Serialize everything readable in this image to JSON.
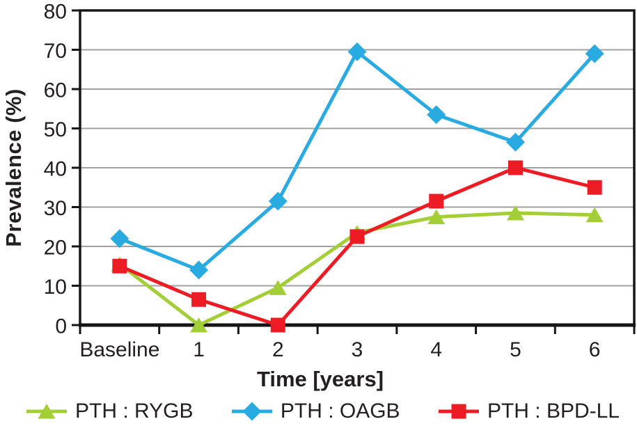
{
  "figure": {
    "background": "#ffffff",
    "text_color": "#231f20",
    "axis_color": "#161616",
    "gridline_color": "#a0a0a0"
  },
  "chart_data": {
    "type": "line",
    "title": "",
    "xlabel": "Time [years]",
    "ylabel": "Prevalence (%)",
    "categories": [
      "Baseline",
      "1",
      "2",
      "3",
      "4",
      "5",
      "6"
    ],
    "y_ticks": [
      0,
      10,
      20,
      30,
      40,
      50,
      60,
      70,
      80
    ],
    "ylim": [
      0,
      80
    ],
    "grid": "horizontal",
    "legend_position": "bottom",
    "series": [
      {
        "name": "PTH : RYGB",
        "color": "#a3ce38",
        "marker": "triangle",
        "values": [
          15.5,
          0,
          9.5,
          23.5,
          27.5,
          28.5,
          28
        ]
      },
      {
        "name": "PTH : OAGB",
        "color": "#29abe2",
        "marker": "diamond",
        "values": [
          22,
          14,
          31.5,
          69.5,
          53.5,
          46.5,
          69
        ]
      },
      {
        "name": "PTH : BPD-LL",
        "color": "#ed1c24",
        "marker": "square",
        "values": [
          15,
          6.5,
          0,
          22.5,
          31.5,
          40,
          35
        ]
      }
    ]
  }
}
